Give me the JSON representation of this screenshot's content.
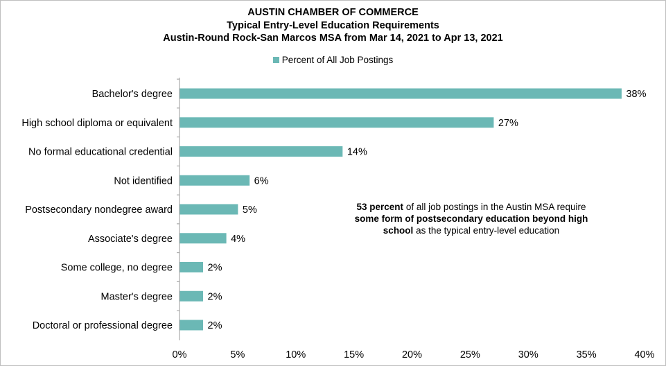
{
  "titles": {
    "line1": "AUSTIN CHAMBER OF COMMERCE",
    "line2": "Typical Entry-Level Education Requirements",
    "line3": "Austin-Round Rock-San Marcos MSA from Mar 14, 2021 to Apr 13, 2021"
  },
  "annotation": {
    "strong1": "53 percent",
    "text1": " of all job postings in the Austin MSA require ",
    "strong2": "some form of postsecondary education beyond high school",
    "text2": " as the typical entry-level education"
  },
  "chart_data": {
    "type": "bar",
    "orientation": "horizontal",
    "title": "AUSTIN CHAMBER OF COMMERCE",
    "categories": [
      "Bachelor's degree",
      "High school diploma or equivalent",
      "No formal educational credential",
      "Not identified",
      "Postsecondary nondegree award",
      "Associate's degree",
      "Some college, no degree",
      "Master's degree",
      "Doctoral or professional degree"
    ],
    "series": [
      {
        "name": "Percent of All Job Postings",
        "values": [
          38,
          27,
          14,
          6,
          5,
          4,
          2,
          2,
          2
        ],
        "labels": [
          "38%",
          "27%",
          "14%",
          "6%",
          "5%",
          "4%",
          "2%",
          "2%",
          "2%"
        ]
      }
    ],
    "xlim": [
      0,
      40
    ],
    "xticks": [
      "0%",
      "5%",
      "10%",
      "15%",
      "20%",
      "25%",
      "30%",
      "35%",
      "40%"
    ],
    "grid": false,
    "legend": "top-center",
    "color": "#6bb8b5"
  }
}
